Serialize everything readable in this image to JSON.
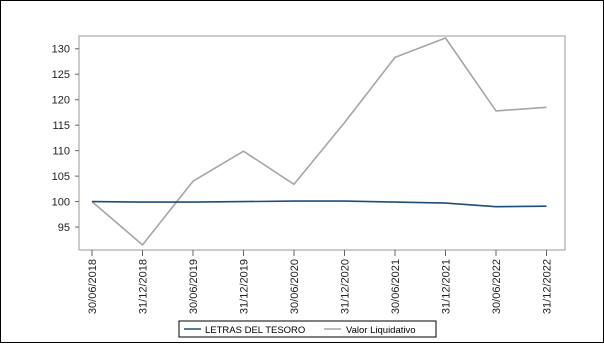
{
  "chart_data": {
    "type": "line",
    "x": [
      "30/06/2018",
      "31/12/2018",
      "30/06/2019",
      "31/12/2019",
      "30/06/2020",
      "31/12/2020",
      "30/06/2021",
      "31/12/2021",
      "30/06/2022",
      "31/12/2022"
    ],
    "y_ticks": [
      95,
      100,
      105,
      110,
      115,
      120,
      125,
      130
    ],
    "ylim": [
      90.5,
      132.5
    ],
    "series": [
      {
        "name": "LETRAS DEL TESORO",
        "color": "#1f4e79",
        "values": [
          100.0,
          99.9,
          99.9,
          100.0,
          100.1,
          100.1,
          99.9,
          99.7,
          99.0,
          99.1
        ]
      },
      {
        "name": "Valor Liquidativo",
        "color": "#a6a6a6",
        "values": [
          100.0,
          91.5,
          104.0,
          109.9,
          103.4,
          115.5,
          128.3,
          132.1,
          117.8,
          118.5
        ]
      }
    ],
    "grid": false,
    "legend": "bottom-center"
  }
}
